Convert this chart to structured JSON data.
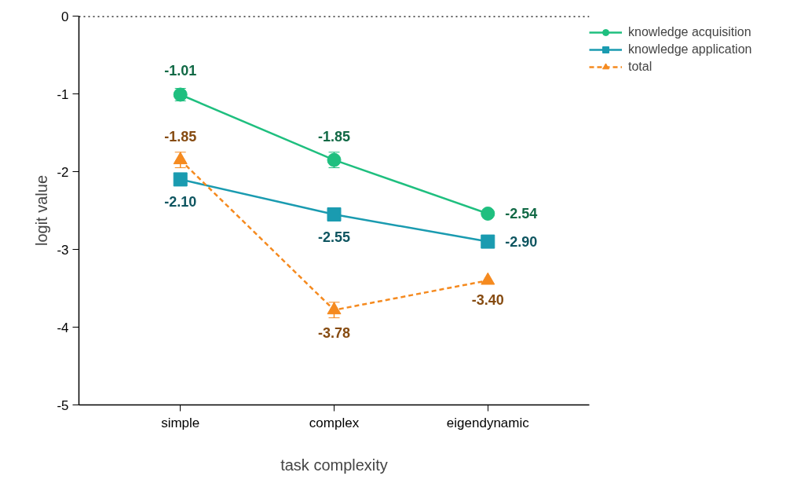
{
  "chart_data": {
    "type": "line",
    "xlabel": "task complexity",
    "ylabel": "logit value",
    "categories": [
      "simple",
      "complex",
      "eigendynamic"
    ],
    "series": [
      {
        "name": "knowledge acquisition",
        "color": "#1fbf7f",
        "values": [
          -1.01,
          -1.85,
          -2.54
        ],
        "value_labels": [
          "-1.01",
          "-1.85",
          "-2.54"
        ],
        "errors": [
          0.08,
          0.1,
          null
        ],
        "marker": "circle",
        "line_style": "solid"
      },
      {
        "name": "knowledge application",
        "color": "#1a9bb0",
        "values": [
          -2.1,
          -2.55,
          -2.9
        ],
        "value_labels": [
          "-2.10",
          "-2.55",
          "-2.90"
        ],
        "marker": "square",
        "line_style": "solid"
      },
      {
        "name": "total",
        "color": "#f58a1f",
        "values": [
          -1.85,
          -3.78,
          -3.4
        ],
        "value_labels": [
          "-1.85",
          "-3.78",
          "-3.40"
        ],
        "errors": [
          0.1,
          0.1,
          null
        ],
        "marker": "triangle",
        "line_style": "dashed"
      }
    ],
    "ylim": [
      -5,
      0
    ],
    "yticks": [
      -5,
      -4,
      -3,
      -2,
      -1,
      0
    ],
    "ref_lines": [
      {
        "axis": "y",
        "value": 0,
        "color": "#000000",
        "line_style": "dotted"
      }
    ],
    "grid": false,
    "legend": "right"
  }
}
